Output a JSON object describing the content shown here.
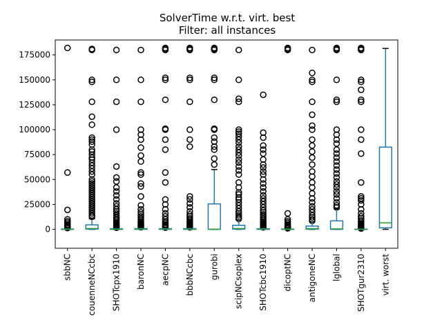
{
  "chart_data": {
    "type": "box",
    "title": "SolverTime w.r.t. virt. best",
    "subtitle": "Filter: all instances",
    "xlabel": "",
    "ylabel": "",
    "ylim": [
      -19000,
      190000
    ],
    "yticks": [
      0,
      25000,
      50000,
      75000,
      100000,
      125000,
      150000,
      175000
    ],
    "ytick_labels": [
      "0",
      "25000",
      "50000",
      "75000",
      "100000",
      "125000",
      "150000",
      "175000"
    ],
    "grid": false,
    "colors": {
      "box": "#1f77b4",
      "median": "#2ca02c",
      "cap": "#000000",
      "flier": "#000000"
    },
    "categories": [
      "sbbNC",
      "couenneNCcbc",
      "SHOTcpx1910",
      "baronNC",
      "aecpNC",
      "bbbNCcbc",
      "gurobi",
      "scipNCsoplex",
      "SHOTcbc1910",
      "dicoptNC",
      "antigoneNC",
      "lglobal",
      "SHOTgur2310",
      "virt. worst"
    ],
    "boxes": [
      {
        "q1": 0,
        "median": 0,
        "q3": 300,
        "whislo": 0,
        "whishi": 700,
        "fliers": [
          182000,
          57000,
          19500,
          10000,
          8000,
          6500,
          5000,
          4000,
          3000,
          2500,
          2000,
          1500,
          1200
        ]
      },
      {
        "q1": 200,
        "median": 800,
        "q3": 4500,
        "whislo": 0,
        "whishi": 10500,
        "fliers": [
          181000,
          180000,
          150000,
          148000,
          128000,
          113000,
          105000,
          92000,
          90000,
          88000,
          85000,
          80000,
          78000,
          75000,
          72000,
          70000,
          67000,
          64000,
          61000,
          58000,
          55000,
          50000,
          48000,
          46000,
          44000,
          42000,
          40000,
          38000,
          36000,
          34000,
          32000,
          30000,
          28000,
          26000,
          24000,
          22000,
          20000,
          18000,
          16000,
          14000,
          12500
        ]
      },
      {
        "q1": 0,
        "median": 0,
        "q3": 500,
        "whislo": 0,
        "whishi": 1100,
        "fliers": [
          180000,
          150000,
          128000,
          100000,
          63000,
          52000,
          48000,
          42000,
          38000,
          34000,
          30000,
          26000,
          23000,
          20000,
          18000,
          16000,
          14000,
          12000,
          10000,
          8500,
          7000,
          6000,
          5000,
          4000,
          3000,
          2200,
          1600
        ]
      },
      {
        "q1": 0,
        "median": 200,
        "q3": 700,
        "whislo": 0,
        "whishi": 1500,
        "fliers": [
          180000,
          150000,
          128000,
          100000,
          95000,
          90000,
          82000,
          74000,
          68000,
          57000,
          55000,
          46000,
          43000,
          33000,
          24000,
          20000,
          17000,
          15000,
          13000,
          11000,
          9500,
          8000,
          7000,
          6000,
          5000,
          4200,
          3400,
          2700,
          2100
        ]
      },
      {
        "q1": 0,
        "median": 150,
        "q3": 600,
        "whislo": 0,
        "whishi": 1300,
        "fliers": [
          182000,
          181000,
          180000,
          152000,
          150000,
          130000,
          101000,
          100000,
          90000,
          80000,
          57000,
          47000,
          30000,
          25000,
          20000,
          16000,
          13000,
          10000,
          8000,
          6500,
          5000,
          4000,
          3000,
          2200,
          1700
        ]
      },
      {
        "q1": 0,
        "median": 150,
        "q3": 700,
        "whislo": 0,
        "whishi": 1500,
        "fliers": [
          182000,
          181000,
          180000,
          152000,
          150000,
          128000,
          100000,
          90000,
          83000,
          33000,
          30000,
          26000,
          22000,
          18000,
          15000,
          13000,
          11000,
          9500,
          8000,
          7000,
          6000,
          5000,
          4000,
          3200,
          2500,
          1900
        ]
      },
      {
        "q1": 0,
        "median": 100,
        "q3": 25500,
        "whislo": 0,
        "whishi": 60000,
        "fliers": [
          182000,
          181000,
          180000,
          152000,
          150000,
          130000,
          101000,
          100000,
          92000,
          88000,
          83000,
          80000,
          71000,
          65000
        ]
      },
      {
        "q1": 200,
        "median": 800,
        "q3": 4000,
        "whislo": 0,
        "whishi": 9500,
        "fliers": [
          180000,
          150000,
          131000,
          128000,
          100000,
          98000,
          96000,
          93000,
          90000,
          87000,
          83000,
          80000,
          77000,
          74000,
          70000,
          67000,
          63000,
          59000,
          55000,
          47000,
          42000,
          37000,
          35000,
          32000,
          30000,
          27000,
          24000,
          21000,
          18000,
          16000,
          14000,
          12000,
          10500
        ]
      },
      {
        "q1": 0,
        "median": 100,
        "q3": 600,
        "whislo": 0,
        "whishi": 1300,
        "fliers": [
          135000,
          97000,
          92000,
          84000,
          80000,
          76000,
          70000,
          65000,
          62000,
          58000,
          55000,
          50000,
          46000,
          42000,
          38000,
          34000,
          31000,
          28000,
          25000,
          22000,
          19000,
          17000,
          15000,
          13000,
          11000,
          9500,
          8000,
          7000,
          6000,
          5000,
          4000,
          3200,
          2500,
          1900
        ]
      },
      {
        "q1": 0,
        "median": 0,
        "q3": 300,
        "whislo": 0,
        "whishi": 700,
        "fliers": [
          182000,
          181000,
          180000,
          16000,
          10000,
          8000,
          6500,
          5000,
          4000,
          3000,
          2400,
          1800,
          1300,
          1000
        ]
      },
      {
        "q1": 200,
        "median": 700,
        "q3": 3200,
        "whislo": 0,
        "whishi": 7500,
        "fliers": [
          180000,
          157000,
          150000,
          148000,
          128000,
          115000,
          104000,
          100000,
          90000,
          84000,
          78000,
          72000,
          65000,
          58000,
          53000,
          47000,
          42000,
          36000,
          31000,
          27000,
          23000,
          20000,
          17000,
          14000,
          12000,
          10000,
          8500
        ]
      },
      {
        "q1": 0,
        "median": 500,
        "q3": 8500,
        "whislo": 0,
        "whishi": 20500,
        "fliers": [
          182000,
          181000,
          180000,
          150000,
          130000,
          128000,
          100000,
          95000,
          90000,
          86000,
          80000,
          76000,
          72000,
          68000,
          64000,
          60000,
          56000,
          52000,
          48000,
          45000,
          42000,
          38000,
          35000,
          31000,
          27000,
          24000,
          22000
        ]
      },
      {
        "q1": 0,
        "median": 0,
        "q3": 200,
        "whislo": 0,
        "whishi": 500,
        "fliers": [
          182000,
          181000,
          180000,
          150000,
          148000,
          140000,
          130000,
          128000,
          100000,
          90000,
          76000,
          47000,
          33000,
          31000,
          29000,
          25000,
          20000,
          16000,
          13000,
          11000,
          9000,
          7500,
          6000,
          5000,
          4000,
          3200,
          2500,
          1800,
          1200,
          800
        ]
      },
      {
        "q1": 1500,
        "median": 6500,
        "q3": 82500,
        "whislo": 0,
        "whishi": 181500,
        "fliers": []
      }
    ]
  }
}
